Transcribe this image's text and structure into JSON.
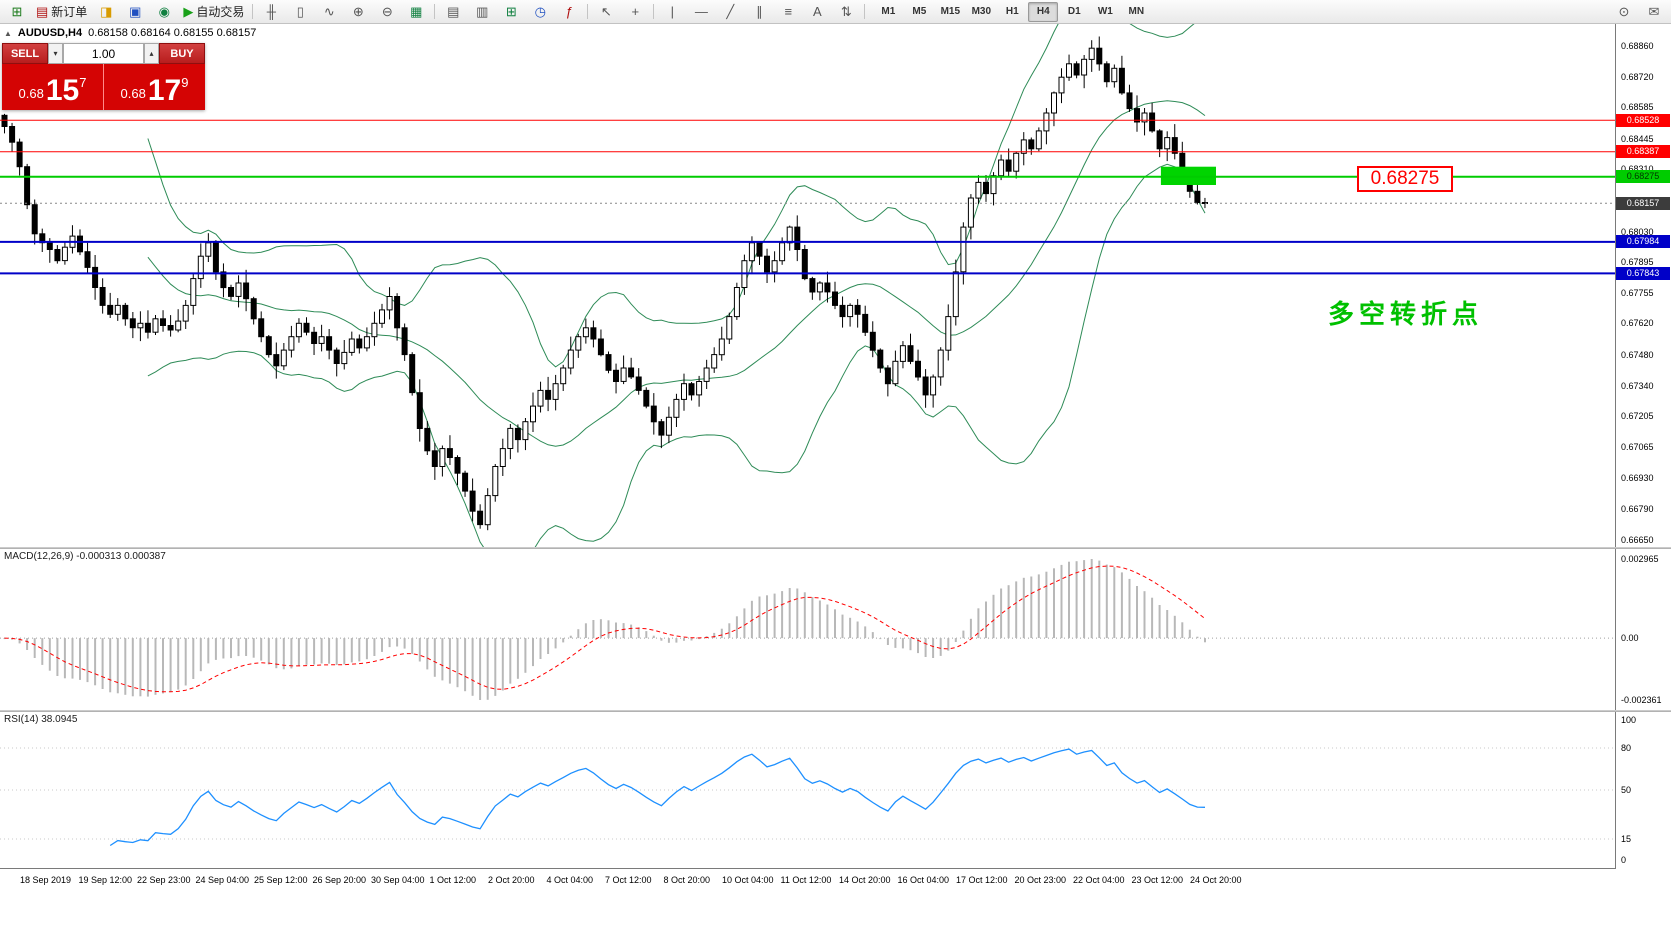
{
  "toolbar": {
    "items": [
      {
        "name": "new-chart-icon",
        "glyph": "⊞",
        "color": "#1a7a1a"
      },
      {
        "name": "new-order-button",
        "glyph": "▤",
        "color": "#b01010",
        "label": "新订单"
      },
      {
        "name": "layout-icon",
        "glyph": "◨",
        "color": "#d89b00"
      },
      {
        "name": "terminal-icon",
        "glyph": "▣",
        "color": "#2050c0"
      },
      {
        "name": "strategy-tester-icon",
        "glyph": "◉",
        "color": "#108040"
      },
      {
        "name": "autotrading-button",
        "glyph": "▶",
        "color": "#18a018",
        "label": "自动交易"
      },
      {
        "sep": true
      },
      {
        "name": "bar-chart-button",
        "glyph": "╫"
      },
      {
        "name": "candlestick-chart-button",
        "glyph": "▯"
      },
      {
        "name": "line-chart-button",
        "glyph": "∿"
      },
      {
        "name": "zoom-in-button",
        "glyph": "⊕"
      },
      {
        "name": "zoom-out-button",
        "glyph": "⊖"
      },
      {
        "name": "grid-button",
        "glyph": "▦",
        "color": "#108040"
      },
      {
        "sep": true
      },
      {
        "name": "tile-windows-button",
        "glyph": "▤"
      },
      {
        "name": "cascade-windows-button",
        "glyph": "▥"
      },
      {
        "name": "new-window-button",
        "glyph": "⊞",
        "color": "#108040"
      },
      {
        "name": "period-icon",
        "glyph": "◷",
        "color": "#2050c0"
      },
      {
        "name": "indicators-button",
        "glyph": "ƒ",
        "color": "#b01010"
      },
      {
        "sep": true
      },
      {
        "name": "cursor-button",
        "glyph": "↖"
      },
      {
        "name": "crosshair-button",
        "glyph": "+"
      },
      {
        "sep": true
      },
      {
        "name": "vertical-line-button",
        "glyph": "|"
      },
      {
        "name": "horizontal-line-button",
        "glyph": "―"
      },
      {
        "name": "trendline-button",
        "glyph": "╱"
      },
      {
        "name": "channel-button",
        "glyph": "∥"
      },
      {
        "name": "fibonacci-button",
        "glyph": "≡"
      },
      {
        "name": "text-button",
        "glyph": "A"
      },
      {
        "name": "arrows-button",
        "glyph": "⇅"
      },
      {
        "sep": true
      }
    ],
    "timeframes": [
      "M1",
      "M5",
      "M15",
      "M30",
      "H1",
      "H4",
      "D1",
      "W1",
      "MN"
    ],
    "active_timeframe": "H4",
    "right_items": [
      {
        "name": "search-icon",
        "glyph": "⊙"
      },
      {
        "name": "chat-icon",
        "glyph": "✉"
      }
    ]
  },
  "chart": {
    "collapse_icon": "▲",
    "symbol_label": "AUDUSD,H4",
    "ohlc": "0.68158 0.68164 0.68155 0.68157"
  },
  "trade_panel": {
    "sell_label": "SELL",
    "buy_label": "BUY",
    "volume": "1.00",
    "sell_dropdown_icon": "▾",
    "buy_dropdown_icon": "▴",
    "sell_price_small": "0.68",
    "sell_price_big": "15",
    "sell_price_sup": "7",
    "buy_price_small": "0.68",
    "buy_price_big": "17",
    "buy_price_sup": "9"
  },
  "levels": [
    {
      "price": 0.68528,
      "label": "0.68528",
      "color": "#ff0000",
      "width": 1,
      "text": "#ffffff"
    },
    {
      "price": 0.68387,
      "label": "0.68387",
      "color": "#ff0000",
      "width": 1,
      "text": "#ffffff"
    },
    {
      "price": 0.68275,
      "label": "0.68275",
      "color": "#00cc00",
      "width": 2,
      "text": "#003300"
    },
    {
      "price": 0.67984,
      "label": "0.67984",
      "color": "#0000c8",
      "width": 2,
      "text": "#ffffff"
    },
    {
      "price": 0.67843,
      "label": "0.67843",
      "color": "#0000c8",
      "width": 2,
      "text": "#ffffff"
    }
  ],
  "current_price": {
    "value": 0.68157,
    "label": "0.68157",
    "tag_color": "#3c3c3c"
  },
  "annotations": {
    "price_box": "0.68275",
    "cn_text": "多空转折点",
    "green_rect": {
      "from_bar": 153.5,
      "to_bar": 160.8,
      "price_min": 0.68238,
      "price_max": 0.6832,
      "color": "#00d400"
    }
  },
  "price_axis_ticks": [
    "0.68860",
    "0.68720",
    "0.68585",
    "0.68445",
    "0.68310",
    "0.68030",
    "0.67895",
    "0.67755",
    "0.67620",
    "0.67480",
    "0.67340",
    "0.67205",
    "0.67065",
    "0.66930",
    "0.66790",
    "0.66650"
  ],
  "macd": {
    "label": "MACD(12,26,9) -0.000313 0.000387",
    "axis_top": "0.002965",
    "axis_zero": "0.00",
    "axis_bottom": "-0.002361",
    "histogram_color": "#b8b8b8",
    "signal_color": "#ff0000"
  },
  "rsi": {
    "label": "RSI(14) 38.0945",
    "line_color": "#1e90ff",
    "axis_levels": [
      100,
      80,
      50,
      15,
      0
    ],
    "dotted_levels": [
      80,
      50,
      15
    ]
  },
  "time_axis": [
    "18 Sep 2019",
    "19 Sep 12:00",
    "22 Sep 23:00",
    "24 Sep 04:00",
    "25 Sep 12:00",
    "26 Sep 20:00",
    "30 Sep 04:00",
    "1 Oct 12:00",
    "2 Oct 20:00",
    "4 Oct 04:00",
    "7 Oct 12:00",
    "8 Oct 20:00",
    "10 Oct 04:00",
    "11 Oct 12:00",
    "14 Oct 20:00",
    "16 Oct 04:00",
    "17 Oct 12:00",
    "20 Oct 23:00",
    "22 Oct 04:00",
    "23 Oct 12:00",
    "24 Oct 20:00"
  ],
  "chart_data": {
    "type": "candlestick",
    "symbol": "AUDUSD",
    "timeframe": "H4",
    "ylim": [
      0.6662,
      0.68958
    ],
    "bollinger": {
      "period": 20,
      "deviation": 2,
      "color": "#2e8b57"
    },
    "macd_params": {
      "fast": 12,
      "slow": 26,
      "signal": 9
    },
    "rsi_params": {
      "period": 14
    },
    "closes": [
      0.685,
      0.6843,
      0.6832,
      0.6815,
      0.6802,
      0.6798,
      0.6795,
      0.679,
      0.6796,
      0.6801,
      0.6794,
      0.6787,
      0.6778,
      0.677,
      0.6766,
      0.677,
      0.6764,
      0.676,
      0.6762,
      0.6758,
      0.6764,
      0.6761,
      0.6759,
      0.6763,
      0.677,
      0.6782,
      0.6792,
      0.6798,
      0.6785,
      0.6778,
      0.6774,
      0.678,
      0.6773,
      0.6764,
      0.6756,
      0.6748,
      0.6743,
      0.675,
      0.6756,
      0.6762,
      0.6758,
      0.6753,
      0.6756,
      0.675,
      0.6744,
      0.6749,
      0.6755,
      0.6751,
      0.6756,
      0.6762,
      0.6768,
      0.6774,
      0.676,
      0.6748,
      0.6731,
      0.6715,
      0.6705,
      0.6698,
      0.6706,
      0.6702,
      0.6695,
      0.6687,
      0.6678,
      0.6672,
      0.6685,
      0.6698,
      0.6706,
      0.6715,
      0.671,
      0.6718,
      0.6725,
      0.6732,
      0.6728,
      0.6735,
      0.6742,
      0.675,
      0.6756,
      0.676,
      0.6755,
      0.6748,
      0.6741,
      0.6736,
      0.6742,
      0.6738,
      0.6732,
      0.6725,
      0.6718,
      0.6712,
      0.672,
      0.6728,
      0.6735,
      0.673,
      0.6736,
      0.6742,
      0.6748,
      0.6755,
      0.6765,
      0.6778,
      0.679,
      0.6798,
      0.6792,
      0.6785,
      0.679,
      0.6798,
      0.6805,
      0.6795,
      0.6782,
      0.6776,
      0.678,
      0.6776,
      0.677,
      0.6765,
      0.677,
      0.6766,
      0.6758,
      0.675,
      0.6742,
      0.6735,
      0.6745,
      0.6752,
      0.6745,
      0.6738,
      0.673,
      0.6738,
      0.675,
      0.6765,
      0.6785,
      0.6805,
      0.6818,
      0.6825,
      0.682,
      0.6828,
      0.6835,
      0.683,
      0.6838,
      0.6844,
      0.684,
      0.6848,
      0.6856,
      0.6865,
      0.6872,
      0.6878,
      0.6873,
      0.688,
      0.6885,
      0.6878,
      0.687,
      0.6876,
      0.6865,
      0.6858,
      0.6852,
      0.6856,
      0.6848,
      0.684,
      0.6845,
      0.6838,
      0.683,
      0.6821,
      0.6816,
      0.68157
    ]
  }
}
